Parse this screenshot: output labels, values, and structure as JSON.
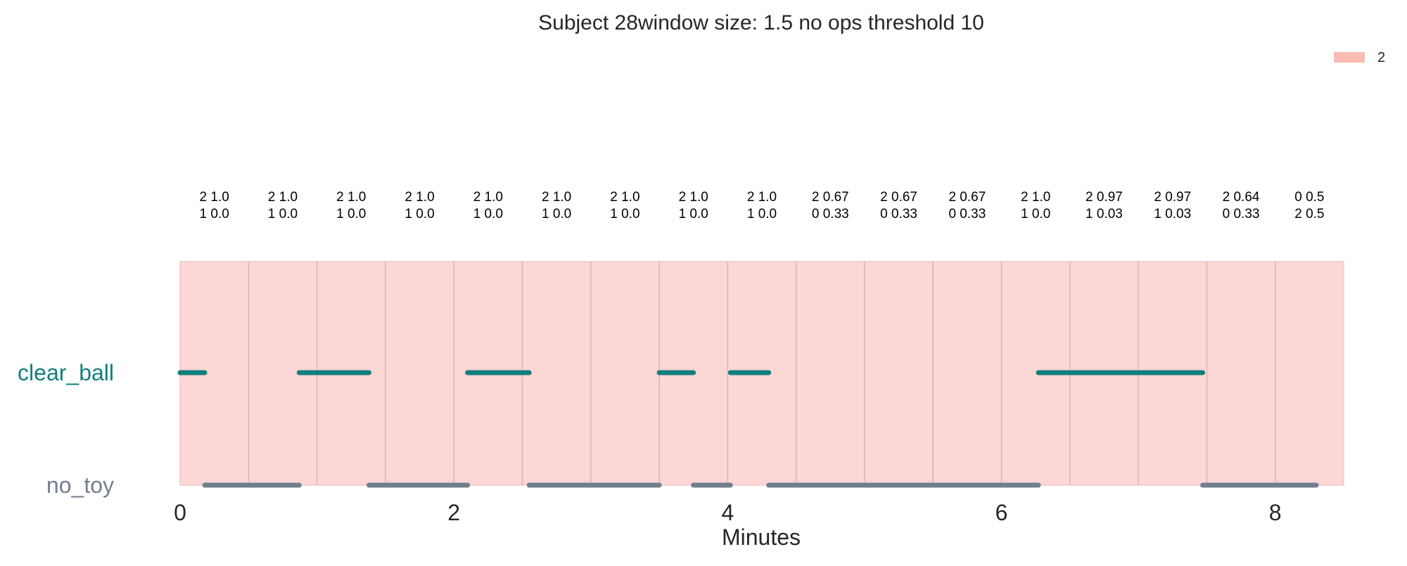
{
  "chart_data": {
    "type": "timeline",
    "title": "Subject 28window size: 1.5 no ops threshold 10",
    "xlabel": "Minutes",
    "xlim": [
      0,
      8.5
    ],
    "xticks": [
      0,
      2,
      4,
      6,
      8
    ],
    "grid": true,
    "legend": {
      "position": "top-right",
      "items": [
        {
          "label": "2",
          "color": "#f8bcb0"
        }
      ]
    },
    "windows": {
      "boundaries": [
        0,
        0.5,
        1.0,
        1.5,
        2.0,
        2.5,
        3.0,
        3.5,
        4.0,
        4.5,
        5.0,
        5.5,
        6.0,
        6.5,
        7.0,
        7.5,
        8.0,
        8.5
      ],
      "fill_color": "#fdd7d5",
      "labels": [
        [
          "2 1.0",
          "1 0.0"
        ],
        [
          "2 1.0",
          "1 0.0"
        ],
        [
          "2 1.0",
          "1 0.0"
        ],
        [
          "2 1.0",
          "1 0.0"
        ],
        [
          "2 1.0",
          "1 0.0"
        ],
        [
          "2 1.0",
          "1 0.0"
        ],
        [
          "2 1.0",
          "1 0.0"
        ],
        [
          "2 1.0",
          "1 0.0"
        ],
        [
          "2 1.0",
          "1 0.0"
        ],
        [
          "2 0.67",
          "0 0.33"
        ],
        [
          "2 0.67",
          "0 0.33"
        ],
        [
          "2 0.67",
          "0 0.33"
        ],
        [
          "2 1.0",
          "1 0.0"
        ],
        [
          "2 0.97",
          "1 0.03"
        ],
        [
          "2 0.97",
          "1 0.03"
        ],
        [
          "2 0.64",
          "0 0.33"
        ],
        [
          "0 0.5",
          "2 0.5"
        ]
      ]
    },
    "series": [
      {
        "name": "clear_ball",
        "color": "#127e7c",
        "segments": [
          [
            0.0,
            0.18
          ],
          [
            0.87,
            1.38
          ],
          [
            2.1,
            2.55
          ],
          [
            3.5,
            3.75
          ],
          [
            4.02,
            4.3
          ],
          [
            6.27,
            7.47
          ]
        ]
      },
      {
        "name": "no_toy",
        "color": "#717e8f",
        "segments": [
          [
            0.18,
            0.87
          ],
          [
            1.38,
            2.1
          ],
          [
            2.55,
            3.5
          ],
          [
            3.75,
            4.02
          ],
          [
            4.3,
            6.27
          ],
          [
            7.47,
            8.3
          ]
        ]
      }
    ]
  }
}
